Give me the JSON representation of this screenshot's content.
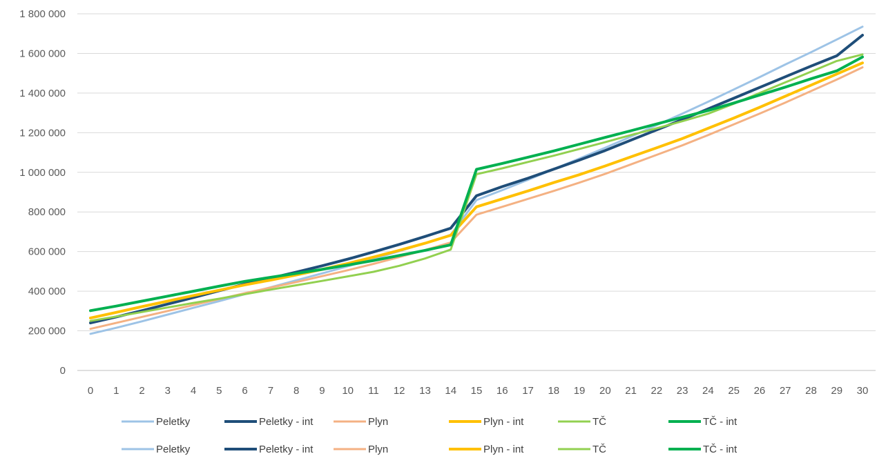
{
  "chart_data": {
    "type": "line",
    "title": "",
    "xlabel": "",
    "ylabel": "",
    "x": [
      0,
      1,
      2,
      3,
      4,
      5,
      6,
      7,
      8,
      9,
      10,
      11,
      12,
      13,
      14,
      15,
      16,
      17,
      18,
      19,
      20,
      21,
      22,
      23,
      24,
      25,
      26,
      27,
      28,
      29,
      30
    ],
    "x_tick_labels": [
      "0",
      "1",
      "2",
      "3",
      "4",
      "5",
      "6",
      "7",
      "8",
      "9",
      "10",
      "11",
      "12",
      "13",
      "14",
      "15",
      "16",
      "17",
      "18",
      "19",
      "20",
      "21",
      "22",
      "23",
      "24",
      "25",
      "26",
      "27",
      "28",
      "29",
      "30"
    ],
    "ylim": [
      0,
      1800000
    ],
    "y_ticks": [
      0,
      200000,
      400000,
      600000,
      800000,
      1000000,
      1200000,
      1400000,
      1600000,
      1800000
    ],
    "y_tick_labels": [
      "0",
      "200 000",
      "400 000",
      "600 000",
      "800 000",
      "1 000 000",
      "1 200 000",
      "1 400 000",
      "1 600 000",
      "1 800 000"
    ],
    "grid": "horizontal",
    "legend_position": "bottom",
    "legend_rows": 2,
    "series": [
      {
        "name": "Peletky",
        "color": "#9dc3e6",
        "width": 3,
        "values": [
          185000,
          215000,
          248000,
          282000,
          316000,
          350000,
          385000,
          420000,
          455000,
          490000,
          526000,
          563000,
          602000,
          642000,
          685000,
          860000,
          910000,
          962000,
          1016000,
          1070000,
          1124000,
          1180000,
          1238000,
          1296000,
          1356000,
          1418000,
          1480000,
          1544000,
          1606000,
          1670000,
          1735000
        ]
      },
      {
        "name": "Peletky - int",
        "color": "#1f4e79",
        "width": 4,
        "values": [
          240000,
          270000,
          302000,
          335000,
          368000,
          402000,
          436000,
          466000,
          496000,
          528000,
          562000,
          598000,
          636000,
          676000,
          718000,
          882000,
          928000,
          970000,
          1016000,
          1062000,
          1110000,
          1162000,
          1214000,
          1266000,
          1320000,
          1374000,
          1428000,
          1482000,
          1536000,
          1588000,
          1692000
        ]
      },
      {
        "name": "Plyn",
        "color": "#f4b183",
        "width": 3,
        "values": [
          210000,
          240000,
          270000,
          300000,
          330000,
          360000,
          390000,
          418000,
          446000,
          476000,
          506000,
          538000,
          572000,
          608000,
          646000,
          786000,
          826000,
          866000,
          906000,
          948000,
          992000,
          1040000,
          1088000,
          1136000,
          1188000,
          1242000,
          1296000,
          1352000,
          1410000,
          1468000,
          1530000
        ]
      },
      {
        "name": "Plyn - int",
        "color": "#ffc000",
        "width": 4,
        "values": [
          265000,
          293000,
          322000,
          350000,
          378000,
          405000,
          432000,
          456000,
          482000,
          510000,
          540000,
          572000,
          606000,
          642000,
          682000,
          826000,
          866000,
          906000,
          948000,
          988000,
          1032000,
          1078000,
          1124000,
          1170000,
          1222000,
          1274000,
          1328000,
          1384000,
          1440000,
          1496000,
          1552000
        ]
      },
      {
        "name": "TČ",
        "color": "#92d050",
        "width": 3,
        "values": [
          250000,
          272000,
          295000,
          318000,
          341000,
          362000,
          385000,
          408000,
          430000,
          452000,
          475000,
          498000,
          528000,
          565000,
          610000,
          990000,
          1020000,
          1052000,
          1084000,
          1118000,
          1152000,
          1188000,
          1222000,
          1258000,
          1296000,
          1346000,
          1400000,
          1454000,
          1508000,
          1562000,
          1595000
        ]
      },
      {
        "name": "TČ - int",
        "color": "#00b050",
        "width": 4,
        "values": [
          302000,
          325000,
          350000,
          375000,
          400000,
          425000,
          450000,
          470000,
          490000,
          510000,
          532000,
          555000,
          580000,
          606000,
          634000,
          1015000,
          1045000,
          1076000,
          1108000,
          1142000,
          1176000,
          1210000,
          1244000,
          1278000,
          1312000,
          1350000,
          1390000,
          1430000,
          1472000,
          1512000,
          1582000
        ]
      }
    ]
  }
}
